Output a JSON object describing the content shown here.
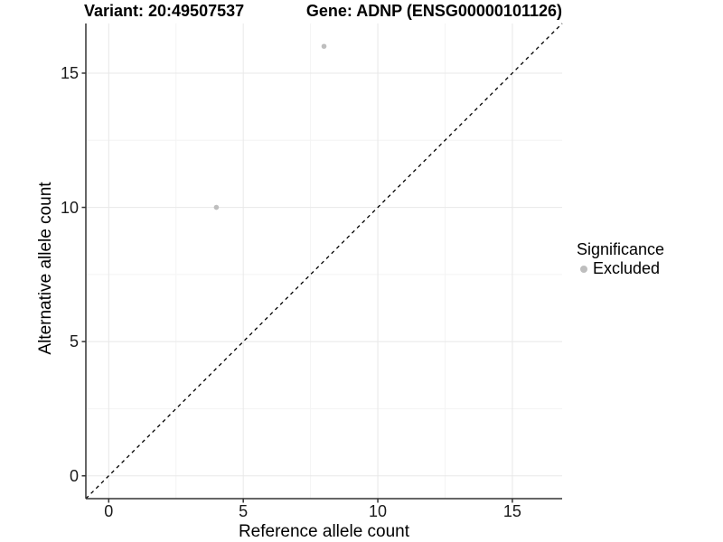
{
  "titles": {
    "variant": "Variant: 20:49507537",
    "gene": "Gene: ADNP (ENSG00000101126)"
  },
  "axes": {
    "x": {
      "label": "Reference allele count",
      "major_ticks": [
        0,
        5,
        10,
        15
      ],
      "minor_ticks": [
        2.5,
        7.5,
        12.5
      ]
    },
    "y": {
      "label": "Alternative allele count",
      "major_ticks": [
        0,
        5,
        10,
        15
      ],
      "minor_ticks": [
        2.5,
        7.5,
        12.5
      ]
    }
  },
  "legend": {
    "title": "Significance",
    "items": [
      {
        "label": "Excluded",
        "color": "#bebebe"
      }
    ]
  },
  "colors": {
    "point": "#bebebe",
    "grid_major": "#e8e8e8",
    "grid_minor": "#f4f4f4",
    "axis_line": "#333333",
    "identity_line": "#000000",
    "background": "#ffffff"
  },
  "chart_data": {
    "type": "scatter",
    "title": "Variant: 20:49507537 — Gene: ADNP (ENSG00000101126)",
    "xlabel": "Reference allele count",
    "ylabel": "Alternative allele count",
    "xlim": [
      -0.85,
      16.85
    ],
    "ylim": [
      -0.85,
      16.85
    ],
    "grid": "major+minor",
    "legend_position": "right",
    "series": [
      {
        "name": "Excluded",
        "color": "#bebebe",
        "points": [
          {
            "x": 4,
            "y": 10
          },
          {
            "x": 8,
            "y": 16
          }
        ]
      }
    ],
    "identity_line": {
      "style": "dashed",
      "slope": 1,
      "intercept": 0,
      "color": "#000000"
    }
  }
}
